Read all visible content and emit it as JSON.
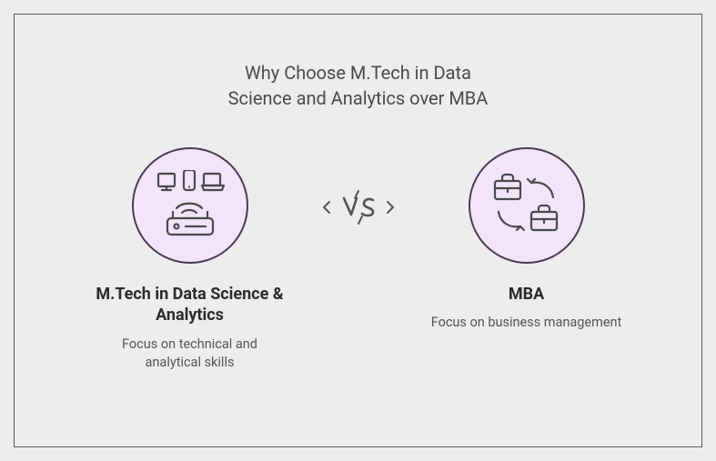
{
  "infographic": {
    "type": "infographic",
    "background_color": "#ededed",
    "frame_border_color": "#5a5a5a",
    "title": "Why Choose M.Tech in Data\nScience and Analytics over MBA",
    "title_color": "#4a4a4a",
    "title_fontsize": 20,
    "circle_fill": "#f2e5fb",
    "circle_stroke": "#4a3a55",
    "icon_stroke": "#4a4a4a",
    "left": {
      "label": "M.Tech in Data Science & Analytics",
      "desc": "Focus on technical and analytical skills",
      "icon": "devices-wifi"
    },
    "right": {
      "label": "MBA",
      "desc": "Focus on business management",
      "icon": "briefcase-swap"
    },
    "vs_label": "VS",
    "label_fontsize": 18,
    "desc_fontsize": 14.5,
    "desc_color": "#555555"
  }
}
